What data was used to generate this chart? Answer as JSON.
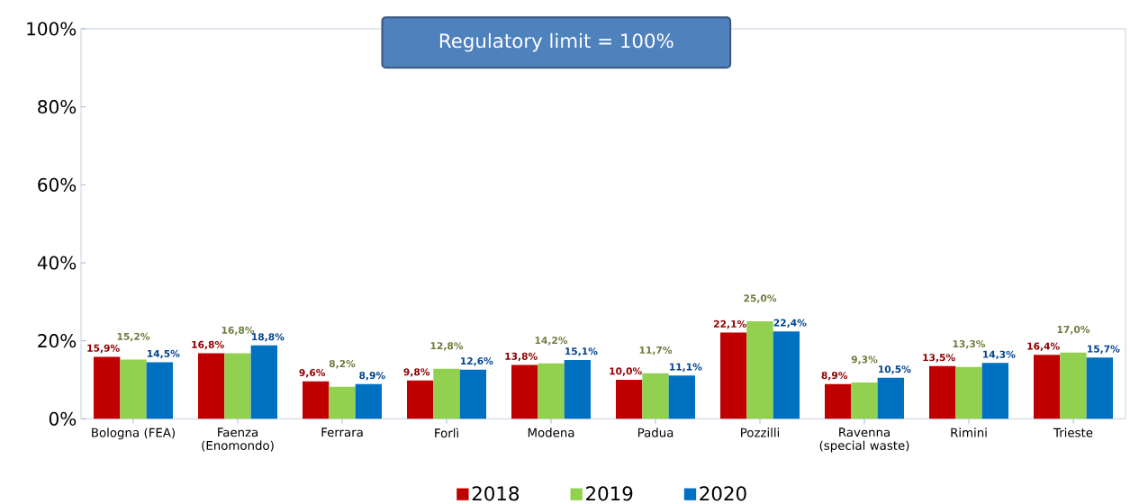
{
  "chart_data": {
    "type": "bar",
    "categories": [
      "Bologna (FEA)",
      "Faenza (Enomondo)",
      "Ferrara",
      "Forlì",
      "Modena",
      "Padua",
      "Pozzilli",
      "Ravenna (special waste)",
      "Rimini",
      "Trieste"
    ],
    "series": [
      {
        "name": "2018",
        "color": "#c00000",
        "values": [
          15.9,
          16.8,
          9.6,
          9.8,
          13.8,
          10.0,
          22.1,
          8.9,
          13.5,
          16.4
        ],
        "value_labels": [
          "15,9%",
          "16,8%",
          "9,6%",
          "9,8%",
          "13,8%",
          "10,0%",
          "22,1%",
          "8,9%",
          "13,5%",
          "16,4%"
        ]
      },
      {
        "name": "2019",
        "color": "#92d050",
        "values": [
          15.2,
          16.8,
          8.2,
          12.8,
          14.2,
          11.7,
          25.0,
          9.3,
          13.3,
          17.0
        ],
        "value_labels": [
          "15,2%",
          "16,8%",
          "8,2%",
          "12,8%",
          "14,2%",
          "11,7%",
          "25,0%",
          "9,3%",
          "13,3%",
          "17,0%"
        ]
      },
      {
        "name": "2020",
        "color": "#0070c0",
        "values": [
          14.5,
          18.8,
          8.9,
          12.6,
          15.1,
          11.1,
          22.4,
          10.5,
          14.3,
          15.7
        ],
        "value_labels": [
          "14,5%",
          "18,8%",
          "8,9%",
          "12,6%",
          "15,1%",
          "11,1%",
          "22,4%",
          "10,5%",
          "14,3%",
          "15,7%"
        ]
      }
    ],
    "ylim": [
      0,
      100
    ],
    "yticks": [
      {
        "value": 0,
        "label": "0%"
      },
      {
        "value": 20,
        "label": "20%"
      },
      {
        "value": 40,
        "label": "40%"
      },
      {
        "value": 60,
        "label": "60%"
      },
      {
        "value": 80,
        "label": "80%"
      },
      {
        "value": 100,
        "label": "100%"
      }
    ],
    "legend": "bottom",
    "annotations": [
      "Regulatory limit = 100%"
    ]
  }
}
